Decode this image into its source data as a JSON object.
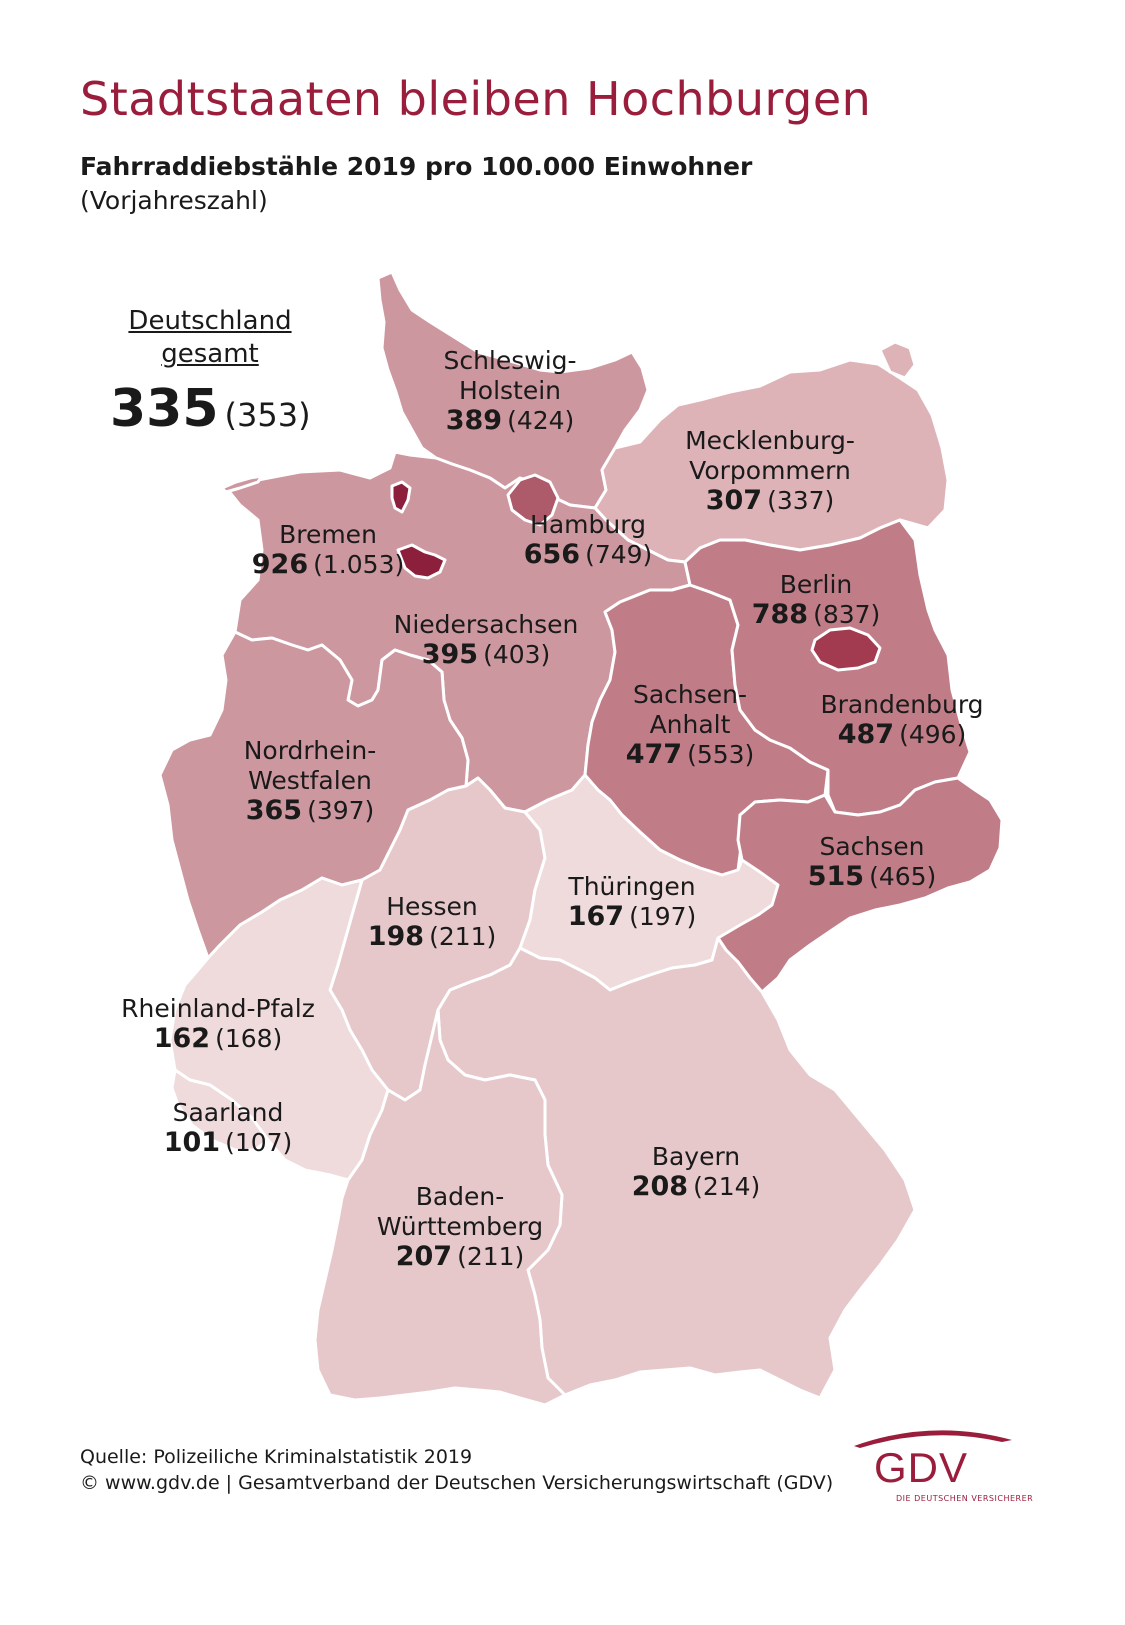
{
  "title": "Stadtstaaten bleiben Hochburgen",
  "subtitle": "Fahrraddiebstähle 2019 pro 100.000 Einwohner",
  "subnote": "(Vorjahreszahl)",
  "total": {
    "label_line1": "Deutschland",
    "label_line2": "gesamt",
    "value": "335",
    "prev": "(353)"
  },
  "colors": {
    "very_high": "#a23a50",
    "high": "#c07d88",
    "mid": "#cd979f",
    "low": "#ddb3b8",
    "lower": "#e6c8cb",
    "lowest": "#efdadc",
    "border": "#ffffff",
    "title": "#9a1e3c"
  },
  "states": [
    {
      "key": "sh",
      "name_line1": "Schleswig-",
      "name_line2": "Holstein",
      "value": "389",
      "prev": "(424)"
    },
    {
      "key": "mv",
      "name_line1": "Mecklenburg-",
      "name_line2": "Vorpommern",
      "value": "307",
      "prev": "(337)"
    },
    {
      "key": "hh",
      "name_line1": "Hamburg",
      "name_line2": "",
      "value": "656",
      "prev": "(749)"
    },
    {
      "key": "hb",
      "name_line1": "Bremen",
      "name_line2": "",
      "value": "926",
      "prev": "(1.053)"
    },
    {
      "key": "be",
      "name_line1": "Berlin",
      "name_line2": "",
      "value": "788",
      "prev": "(837)"
    },
    {
      "key": "ni",
      "name_line1": "Niedersachsen",
      "name_line2": "",
      "value": "395",
      "prev": "(403)"
    },
    {
      "key": "st",
      "name_line1": "Sachsen-",
      "name_line2": "Anhalt",
      "value": "477",
      "prev": "(553)"
    },
    {
      "key": "bb",
      "name_line1": "Brandenburg",
      "name_line2": "",
      "value": "487",
      "prev": "(496)"
    },
    {
      "key": "nw",
      "name_line1": "Nordrhein-",
      "name_line2": "Westfalen",
      "value": "365",
      "prev": "(397)"
    },
    {
      "key": "sn",
      "name_line1": "Sachsen",
      "name_line2": "",
      "value": "515",
      "prev": "(465)"
    },
    {
      "key": "he",
      "name_line1": "Hessen",
      "name_line2": "",
      "value": "198",
      "prev": "(211)"
    },
    {
      "key": "th",
      "name_line1": "Thüringen",
      "name_line2": "",
      "value": "167",
      "prev": "(197)"
    },
    {
      "key": "rp",
      "name_line1": "Rheinland-Pfalz",
      "name_line2": "",
      "value": "162",
      "prev": "(168)"
    },
    {
      "key": "sl",
      "name_line1": "Saarland",
      "name_line2": "",
      "value": "101",
      "prev": "(107)"
    },
    {
      "key": "by",
      "name_line1": "Bayern",
      "name_line2": "",
      "value": "208",
      "prev": "(214)"
    },
    {
      "key": "bw",
      "name_line1": "Baden-",
      "name_line2": "Württemberg",
      "value": "207",
      "prev": "(211)"
    }
  ],
  "footer": {
    "source": "Quelle: Polizeiliche Kriminalstatistik 2019",
    "copyright": "© www.gdv.de | Gesamtverband der Deutschen Versicherungswirtschaft (GDV)"
  },
  "logo": {
    "text": "GDV",
    "sub": "DIE DEUTSCHEN VERSICHERER"
  }
}
